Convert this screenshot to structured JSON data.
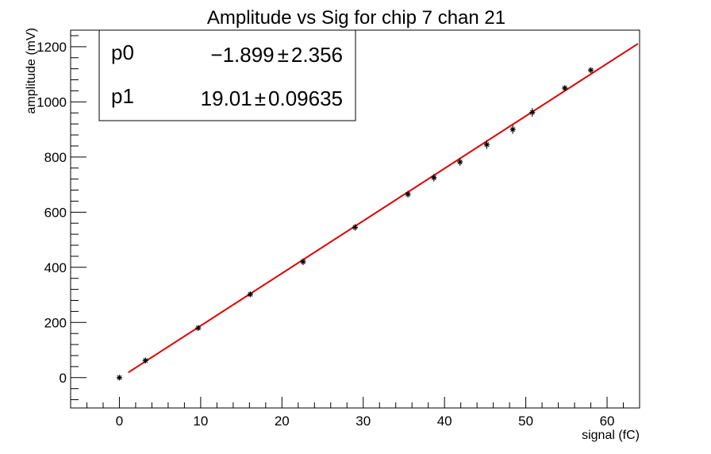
{
  "chart_data": {
    "type": "scatter",
    "title": "Amplitude vs Sig for chip 7 chan 21",
    "xlabel": "signal (fC)",
    "ylabel": "amplitude (mV)",
    "xlim": [
      -6,
      64
    ],
    "ylim": [
      -110,
      1260
    ],
    "x_ticks": [
      0,
      10,
      20,
      30,
      40,
      50,
      60
    ],
    "x_tick_labels": [
      "0",
      "10",
      "20",
      "30",
      "40",
      "50",
      "60"
    ],
    "y_ticks": [
      0,
      200,
      400,
      600,
      800,
      1000,
      1200
    ],
    "y_tick_labels": [
      "0",
      "200",
      "400",
      "600",
      "800",
      "1000",
      "1200"
    ],
    "grid": false,
    "points": [
      {
        "x": 0,
        "y": 0,
        "err": 8
      },
      {
        "x": 3.2,
        "y": 62,
        "err": 10
      },
      {
        "x": 9.7,
        "y": 180,
        "err": 10
      },
      {
        "x": 16.1,
        "y": 302,
        "err": 10
      },
      {
        "x": 22.6,
        "y": 420,
        "err": 12
      },
      {
        "x": 29.0,
        "y": 545,
        "err": 12
      },
      {
        "x": 35.5,
        "y": 665,
        "err": 12
      },
      {
        "x": 38.7,
        "y": 725,
        "err": 14
      },
      {
        "x": 41.9,
        "y": 782,
        "err": 14
      },
      {
        "x": 45.2,
        "y": 845,
        "err": 16
      },
      {
        "x": 48.4,
        "y": 900,
        "err": 16
      },
      {
        "x": 50.8,
        "y": 962,
        "err": 16
      },
      {
        "x": 54.8,
        "y": 1050,
        "err": 10
      },
      {
        "x": 58.0,
        "y": 1115,
        "err": 10
      }
    ],
    "fit": {
      "x_range": [
        1.1,
        63.8
      ],
      "p0_label": "p0",
      "p0_value": "−1.899",
      "p0_error": "2.356",
      "p1_label": "p1",
      "p1_value": "19.01",
      "p1_error": "0.09635",
      "pm": "±",
      "p0": -1.899,
      "p1": 19.01,
      "color": "#e00000"
    },
    "marker_color": "#000000"
  }
}
